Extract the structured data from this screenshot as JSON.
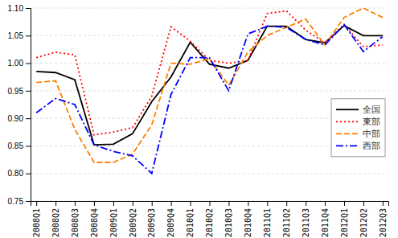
{
  "chart_data": {
    "type": "line",
    "categories": [
      "2008Q1",
      "2008Q2",
      "2008Q3",
      "2008Q4",
      "2009Q1",
      "2009Q2",
      "2009Q3",
      "2009Q4",
      "2010Q1",
      "2010Q2",
      "2010Q3",
      "2010Q4",
      "2011Q1",
      "2011Q2",
      "2011Q3",
      "2011Q4",
      "2012Q1",
      "2012Q2",
      "2012Q3"
    ],
    "series": [
      {
        "name": "全国",
        "color": "#000000",
        "line_style": "solid",
        "values": [
          0.985,
          0.983,
          0.97,
          0.852,
          0.853,
          0.872,
          0.93,
          0.975,
          1.038,
          0.998,
          0.991,
          1.005,
          1.067,
          1.067,
          1.043,
          1.037,
          1.068,
          1.05,
          1.05
        ]
      },
      {
        "name": "東部",
        "color": "#ff0000",
        "line_style": "dotted",
        "values": [
          1.01,
          1.02,
          1.015,
          0.87,
          0.875,
          0.883,
          0.94,
          1.066,
          1.04,
          1.005,
          1.0,
          1.005,
          1.09,
          1.095,
          1.06,
          1.037,
          1.07,
          1.03,
          1.033
        ]
      },
      {
        "name": "中部",
        "color": "#ff8000",
        "line_style": "dashed",
        "values": [
          0.965,
          0.968,
          0.88,
          0.82,
          0.82,
          0.835,
          0.888,
          1.0,
          0.998,
          1.008,
          0.96,
          1.02,
          1.05,
          1.065,
          1.08,
          1.033,
          1.083,
          1.1,
          1.083
        ]
      },
      {
        "name": "西部",
        "color": "#0000ff",
        "line_style": "dashdot",
        "values": [
          0.91,
          0.936,
          0.925,
          0.852,
          0.84,
          0.832,
          0.8,
          0.943,
          1.01,
          1.01,
          0.95,
          1.053,
          1.067,
          1.065,
          1.043,
          1.033,
          1.07,
          1.021,
          1.048
        ]
      }
    ],
    "ylim": [
      0.75,
      1.1
    ],
    "yticks": [
      0.75,
      {
        "value": 0.8,
        "label": "0.80"
      },
      0.85,
      {
        "value": 0.9,
        "label": "0.90"
      },
      0.95,
      {
        "value": 1.0,
        "label": "1.00"
      },
      1.05,
      {
        "value": 1.1,
        "label": "1.10"
      }
    ],
    "grid": true,
    "legend": "right"
  }
}
